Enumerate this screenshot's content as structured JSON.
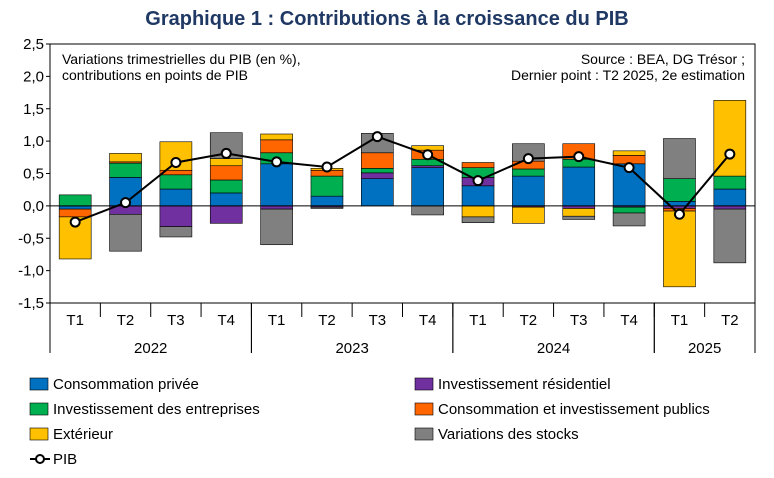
{
  "title": "Graphique 1 : Contributions à la croissance du PIB",
  "note_left": [
    "Variations trimestrielles du PIB (en %),",
    "contributions en points de PIB"
  ],
  "note_right": [
    "Source : BEA, DG Trésor ;",
    "Dernier point : T2 2025, 2e estimation"
  ],
  "chart_data": {
    "type": "bar",
    "stacked": true,
    "categories": [
      "T1",
      "T2",
      "T3",
      "T4",
      "T1",
      "T2",
      "T3",
      "T4",
      "T1",
      "T2",
      "T3",
      "T4",
      "T1",
      "T2"
    ],
    "years": [
      {
        "label": "2022",
        "count": 4
      },
      {
        "label": "2023",
        "count": 4
      },
      {
        "label": "2024",
        "count": 4
      },
      {
        "label": "2025",
        "count": 2
      }
    ],
    "ylim": [
      -1.5,
      2.5
    ],
    "yticks": [
      "2,5",
      "2,0",
      "1,5",
      "1,0",
      "0,5",
      "0,0",
      "-0,5",
      "-1,0",
      "-1,5"
    ],
    "series": [
      {
        "name": "Consommation privée",
        "color": "#0070C0",
        "values": [
          -0.05,
          0.44,
          0.26,
          0.2,
          0.65,
          0.15,
          0.42,
          0.59,
          0.31,
          0.46,
          0.6,
          0.65,
          0.07,
          0.26
        ]
      },
      {
        "name": "Investissement résidentiel",
        "color": "#7030A0",
        "values": [
          0.0,
          -0.13,
          -0.32,
          -0.27,
          -0.05,
          -0.02,
          0.09,
          0.03,
          0.13,
          -0.02,
          -0.04,
          -0.02,
          -0.04,
          -0.05
        ]
      },
      {
        "name": "Investissement des entreprises",
        "color": "#00B050",
        "values": [
          0.17,
          0.22,
          0.22,
          0.2,
          0.17,
          0.31,
          0.07,
          0.1,
          0.15,
          0.11,
          0.12,
          -0.09,
          0.35,
          0.2
        ]
      },
      {
        "name": "Consommation et investissement publics",
        "color": "#FF6600",
        "values": [
          -0.12,
          0.02,
          0.07,
          0.22,
          0.2,
          0.09,
          0.24,
          0.14,
          0.08,
          0.12,
          0.24,
          0.13,
          -0.04,
          0.0
        ]
      },
      {
        "name": "Extérieur",
        "color": "#FFC000",
        "values": [
          -0.65,
          0.13,
          0.44,
          0.11,
          0.09,
          0.03,
          0.0,
          0.07,
          -0.17,
          -0.25,
          -0.12,
          0.07,
          -1.17,
          1.17
        ]
      },
      {
        "name": "Variations des stocks",
        "color": "#808080",
        "values": [
          0.0,
          -0.57,
          -0.16,
          0.4,
          -0.55,
          -0.02,
          0.3,
          -0.14,
          -0.09,
          0.27,
          -0.05,
          -0.2,
          0.62,
          -0.83
        ]
      }
    ],
    "line": {
      "name": "PIB",
      "values": [
        -0.25,
        0.05,
        0.67,
        0.81,
        0.68,
        0.6,
        1.07,
        0.79,
        0.39,
        0.73,
        0.76,
        0.59,
        -0.13,
        0.8
      ]
    },
    "legend": "bottom",
    "grid": false
  }
}
